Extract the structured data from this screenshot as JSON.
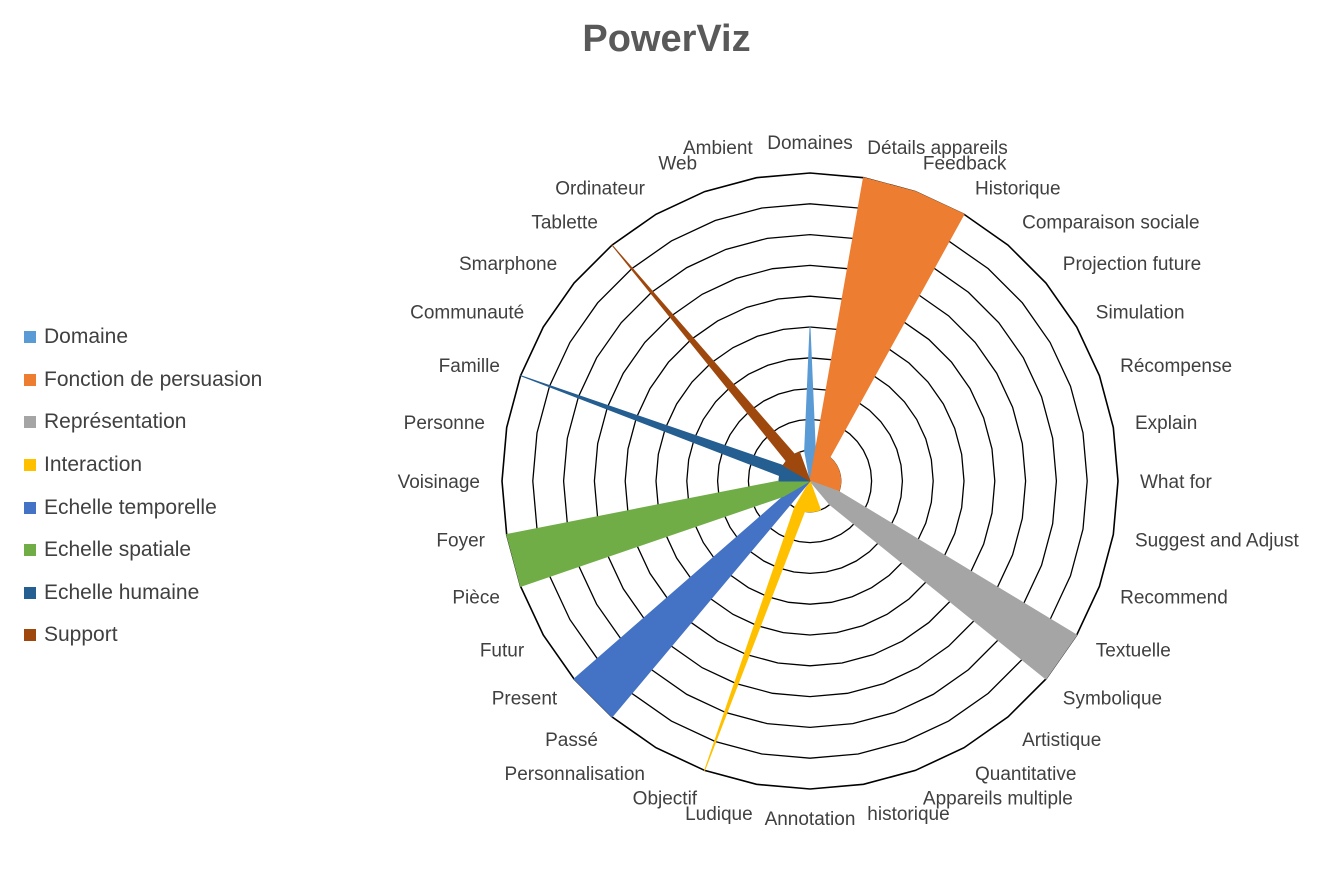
{
  "chart_data": {
    "type": "radar-area",
    "title": "PowerViz",
    "categories": [
      "Domaines",
      "Détails appareils",
      "Feedback",
      "Historique",
      "Comparaison sociale",
      "Projection future",
      "Simulation",
      "Récompense",
      "Explain",
      "What for",
      "Suggest and Adjust",
      "Recommend",
      "Textuelle",
      "Symbolique",
      "Artistique",
      "Quantitative",
      "Appareils multiple",
      "historique",
      "Annotation",
      "Ludique",
      "Objectif",
      "Personnalisation",
      "Passé",
      "Present",
      "Futur",
      "Pièce",
      "Foyer",
      "Voisinage",
      "Personne",
      "Famille",
      "Communauté",
      "Smarphone",
      "Tablette",
      "Ordinateur",
      "Web",
      "Ambient"
    ],
    "rmax": 10,
    "rings": 10,
    "grid": true,
    "legend_position": "left",
    "series": [
      {
        "name": "Domaine",
        "color": "#5B9BD5",
        "values": [
          5,
          1,
          0,
          0,
          0,
          0,
          0,
          0,
          0,
          0,
          0,
          0,
          0,
          0,
          0,
          0,
          0,
          0,
          0,
          0,
          0,
          0,
          0,
          0,
          0,
          0,
          0,
          0,
          0,
          0,
          0,
          0,
          0,
          0,
          0,
          1
        ]
      },
      {
        "name": "Fonction de persuasion",
        "color": "#ED7D31",
        "values": [
          0,
          10,
          10,
          10,
          1,
          1,
          1,
          1,
          1,
          1,
          1,
          1,
          0,
          0,
          0,
          0,
          0,
          0,
          0,
          0,
          0,
          0,
          0,
          0,
          0,
          0,
          0,
          0,
          0,
          0,
          0,
          0,
          0,
          0,
          0,
          0
        ]
      },
      {
        "name": "Représentation",
        "color": "#A5A5A5",
        "values": [
          0,
          0,
          0,
          0,
          0,
          0,
          0,
          0,
          0,
          0,
          0,
          1,
          10,
          10,
          1,
          0,
          0,
          0,
          0,
          0,
          0,
          0,
          0,
          0,
          0,
          0,
          0,
          0,
          0,
          0,
          0,
          0,
          0,
          0,
          0,
          0
        ]
      },
      {
        "name": "Interaction",
        "color": "#FFC000",
        "values": [
          0,
          0,
          0,
          0,
          0,
          0,
          0,
          0,
          0,
          0,
          0,
          0,
          0,
          0,
          0,
          0,
          1,
          1,
          1,
          1,
          10,
          1,
          0,
          0,
          0,
          0,
          0,
          0,
          0,
          0,
          0,
          0,
          0,
          0,
          0,
          0
        ]
      },
      {
        "name": "Echelle temporelle",
        "color": "#4472C4",
        "values": [
          0,
          0,
          0,
          0,
          0,
          0,
          0,
          0,
          0,
          0,
          0,
          0,
          0,
          0,
          0,
          0,
          0,
          0,
          0,
          0,
          0,
          0,
          10,
          10,
          1,
          0,
          0,
          0,
          0,
          0,
          0,
          0,
          0,
          0,
          0,
          0
        ]
      },
      {
        "name": "Echelle spatiale",
        "color": "#70AD47",
        "values": [
          0,
          0,
          0,
          0,
          0,
          0,
          0,
          0,
          0,
          0,
          0,
          0,
          0,
          0,
          0,
          0,
          0,
          0,
          0,
          0,
          0,
          0,
          0,
          0,
          1,
          10,
          10,
          1,
          0,
          0,
          0,
          0,
          0,
          0,
          0,
          0
        ]
      },
      {
        "name": "Echelle humaine",
        "color": "#255E91",
        "values": [
          0,
          0,
          0,
          0,
          0,
          0,
          0,
          0,
          0,
          0,
          0,
          0,
          0,
          0,
          0,
          0,
          0,
          0,
          0,
          0,
          0,
          0,
          0,
          0,
          0,
          0,
          0,
          1,
          1,
          10,
          1,
          0,
          0,
          0,
          0,
          0
        ]
      },
      {
        "name": "Support",
        "color": "#9E480E",
        "values": [
          0,
          0,
          0,
          0,
          0,
          0,
          0,
          0,
          0,
          0,
          0,
          0,
          0,
          0,
          0,
          0,
          0,
          0,
          0,
          0,
          0,
          0,
          0,
          0,
          0,
          0,
          0,
          0,
          0,
          0,
          1,
          1,
          10,
          1,
          1,
          0
        ]
      }
    ]
  }
}
